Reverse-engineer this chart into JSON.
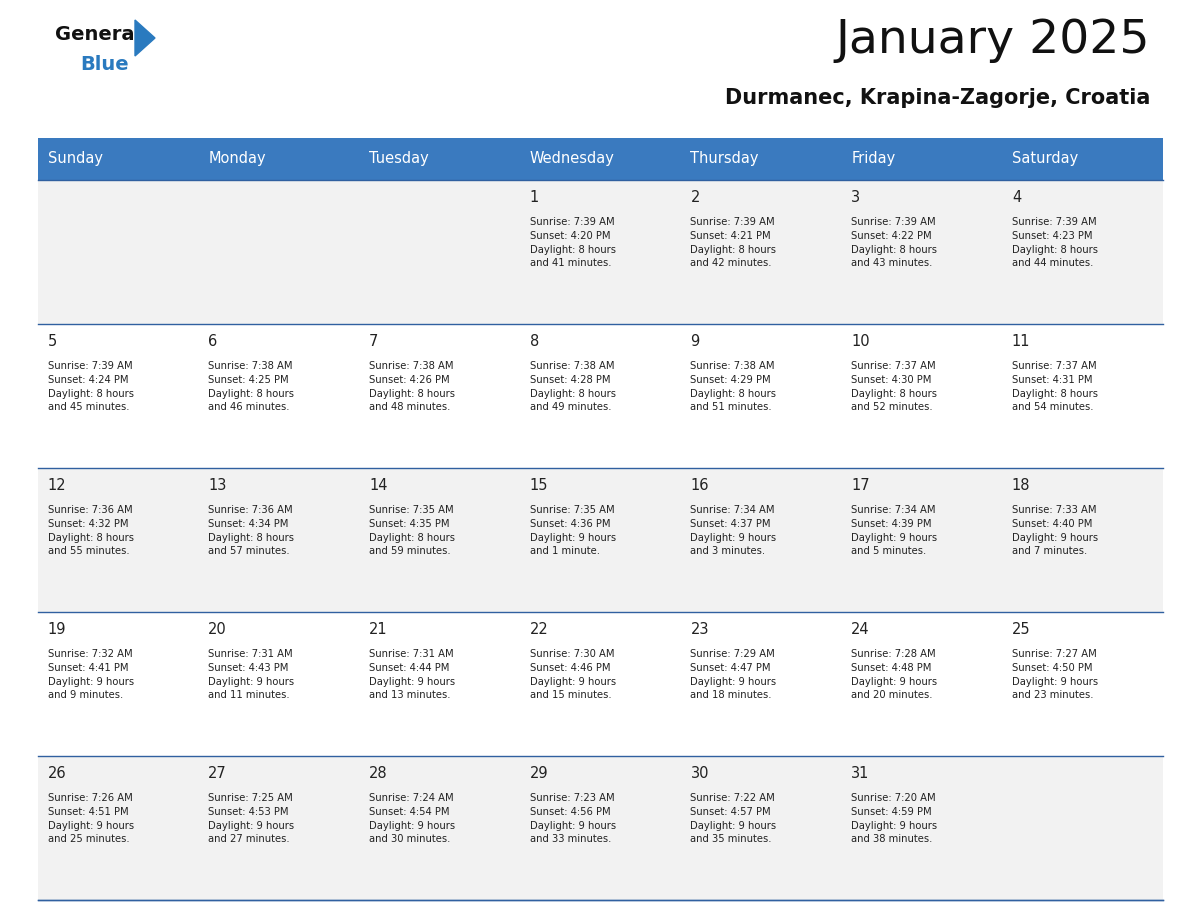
{
  "title": "January 2025",
  "subtitle": "Durmanec, Krapina-Zagorje, Croatia",
  "header_color": "#3a7abf",
  "header_text_color": "#ffffff",
  "cell_bg_even": "#f2f2f2",
  "cell_bg_odd": "#ffffff",
  "text_color": "#222222",
  "border_color": "#3060a0",
  "days_of_week": [
    "Sunday",
    "Monday",
    "Tuesday",
    "Wednesday",
    "Thursday",
    "Friday",
    "Saturday"
  ],
  "calendar_data": [
    [
      {
        "day": "",
        "info": ""
      },
      {
        "day": "",
        "info": ""
      },
      {
        "day": "",
        "info": ""
      },
      {
        "day": "1",
        "info": "Sunrise: 7:39 AM\nSunset: 4:20 PM\nDaylight: 8 hours\nand 41 minutes."
      },
      {
        "day": "2",
        "info": "Sunrise: 7:39 AM\nSunset: 4:21 PM\nDaylight: 8 hours\nand 42 minutes."
      },
      {
        "day": "3",
        "info": "Sunrise: 7:39 AM\nSunset: 4:22 PM\nDaylight: 8 hours\nand 43 minutes."
      },
      {
        "day": "4",
        "info": "Sunrise: 7:39 AM\nSunset: 4:23 PM\nDaylight: 8 hours\nand 44 minutes."
      }
    ],
    [
      {
        "day": "5",
        "info": "Sunrise: 7:39 AM\nSunset: 4:24 PM\nDaylight: 8 hours\nand 45 minutes."
      },
      {
        "day": "6",
        "info": "Sunrise: 7:38 AM\nSunset: 4:25 PM\nDaylight: 8 hours\nand 46 minutes."
      },
      {
        "day": "7",
        "info": "Sunrise: 7:38 AM\nSunset: 4:26 PM\nDaylight: 8 hours\nand 48 minutes."
      },
      {
        "day": "8",
        "info": "Sunrise: 7:38 AM\nSunset: 4:28 PM\nDaylight: 8 hours\nand 49 minutes."
      },
      {
        "day": "9",
        "info": "Sunrise: 7:38 AM\nSunset: 4:29 PM\nDaylight: 8 hours\nand 51 minutes."
      },
      {
        "day": "10",
        "info": "Sunrise: 7:37 AM\nSunset: 4:30 PM\nDaylight: 8 hours\nand 52 minutes."
      },
      {
        "day": "11",
        "info": "Sunrise: 7:37 AM\nSunset: 4:31 PM\nDaylight: 8 hours\nand 54 minutes."
      }
    ],
    [
      {
        "day": "12",
        "info": "Sunrise: 7:36 AM\nSunset: 4:32 PM\nDaylight: 8 hours\nand 55 minutes."
      },
      {
        "day": "13",
        "info": "Sunrise: 7:36 AM\nSunset: 4:34 PM\nDaylight: 8 hours\nand 57 minutes."
      },
      {
        "day": "14",
        "info": "Sunrise: 7:35 AM\nSunset: 4:35 PM\nDaylight: 8 hours\nand 59 minutes."
      },
      {
        "day": "15",
        "info": "Sunrise: 7:35 AM\nSunset: 4:36 PM\nDaylight: 9 hours\nand 1 minute."
      },
      {
        "day": "16",
        "info": "Sunrise: 7:34 AM\nSunset: 4:37 PM\nDaylight: 9 hours\nand 3 minutes."
      },
      {
        "day": "17",
        "info": "Sunrise: 7:34 AM\nSunset: 4:39 PM\nDaylight: 9 hours\nand 5 minutes."
      },
      {
        "day": "18",
        "info": "Sunrise: 7:33 AM\nSunset: 4:40 PM\nDaylight: 9 hours\nand 7 minutes."
      }
    ],
    [
      {
        "day": "19",
        "info": "Sunrise: 7:32 AM\nSunset: 4:41 PM\nDaylight: 9 hours\nand 9 minutes."
      },
      {
        "day": "20",
        "info": "Sunrise: 7:31 AM\nSunset: 4:43 PM\nDaylight: 9 hours\nand 11 minutes."
      },
      {
        "day": "21",
        "info": "Sunrise: 7:31 AM\nSunset: 4:44 PM\nDaylight: 9 hours\nand 13 minutes."
      },
      {
        "day": "22",
        "info": "Sunrise: 7:30 AM\nSunset: 4:46 PM\nDaylight: 9 hours\nand 15 minutes."
      },
      {
        "day": "23",
        "info": "Sunrise: 7:29 AM\nSunset: 4:47 PM\nDaylight: 9 hours\nand 18 minutes."
      },
      {
        "day": "24",
        "info": "Sunrise: 7:28 AM\nSunset: 4:48 PM\nDaylight: 9 hours\nand 20 minutes."
      },
      {
        "day": "25",
        "info": "Sunrise: 7:27 AM\nSunset: 4:50 PM\nDaylight: 9 hours\nand 23 minutes."
      }
    ],
    [
      {
        "day": "26",
        "info": "Sunrise: 7:26 AM\nSunset: 4:51 PM\nDaylight: 9 hours\nand 25 minutes."
      },
      {
        "day": "27",
        "info": "Sunrise: 7:25 AM\nSunset: 4:53 PM\nDaylight: 9 hours\nand 27 minutes."
      },
      {
        "day": "28",
        "info": "Sunrise: 7:24 AM\nSunset: 4:54 PM\nDaylight: 9 hours\nand 30 minutes."
      },
      {
        "day": "29",
        "info": "Sunrise: 7:23 AM\nSunset: 4:56 PM\nDaylight: 9 hours\nand 33 minutes."
      },
      {
        "day": "30",
        "info": "Sunrise: 7:22 AM\nSunset: 4:57 PM\nDaylight: 9 hours\nand 35 minutes."
      },
      {
        "day": "31",
        "info": "Sunrise: 7:20 AM\nSunset: 4:59 PM\nDaylight: 9 hours\nand 38 minutes."
      },
      {
        "day": "",
        "info": ""
      }
    ]
  ]
}
